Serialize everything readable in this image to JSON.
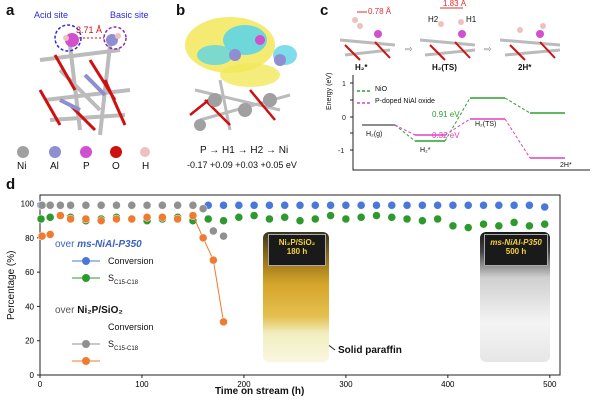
{
  "panel_a": {
    "label": "a",
    "acid_site": "Acid site",
    "basic_site": "Basic site",
    "distance": "3.71 Å",
    "legend": [
      {
        "name": "Ni",
        "color": "#a0a0a0"
      },
      {
        "name": "Al",
        "color": "#8e8ed0"
      },
      {
        "name": "P",
        "color": "#d050d0"
      },
      {
        "name": "O",
        "color": "#d01010"
      },
      {
        "name": "H",
        "color": "#f0c0c0"
      }
    ]
  },
  "panel_b": {
    "label": "b",
    "flow": "P → H1 → H2 → Ni",
    "charges": "-0.17  +0.09  +0.03  +0.05 eV"
  },
  "panel_c": {
    "label": "c",
    "dist1": "0.78 Å",
    "dist2": "1.83 Å",
    "h2_label": "H2",
    "h1_label": "H1",
    "state_labels": [
      "H₂*",
      "H₂(TS)",
      "2H*"
    ],
    "legend": [
      {
        "name": "NiO",
        "color": "#2ca02c"
      },
      {
        "name": "P-doped NiAl oxide",
        "color": "#e040c0"
      }
    ],
    "ylabel": "Energy (eV)",
    "barrier_green": "0.91 eV",
    "barrier_magenta": "0.32 eV",
    "level_labels": [
      "H₂(g)",
      "H₂*",
      "H₂(TS)",
      "2H*"
    ]
  },
  "panel_d": {
    "label": "d",
    "legend_group1_title_prefix": "over ",
    "legend_group1_catalyst": "ms-NiAl-P350",
    "legend_group2_title_prefix": "over ",
    "legend_group2_catalyst": "Ni₂P/SiO₂",
    "conversion_label": "Conversion",
    "selectivity_label": "S",
    "selectivity_sub": "C15-C18",
    "photo1_title": "Ni₂P/SiO₂",
    "photo1_time": "180 h",
    "photo2_title": "ms-NiAl-P350",
    "photo2_time": "500 h",
    "paraffin_label": "Solid paraffin"
  },
  "chart_data": {
    "type": "scatter",
    "xlabel": "Time on stream (h)",
    "ylabel": "Percentage (%)",
    "xlim": [
      0,
      510
    ],
    "ylim": [
      0,
      105
    ],
    "xticks": [
      0,
      100,
      200,
      300,
      400,
      500
    ],
    "yticks": [
      0,
      20,
      40,
      60,
      80,
      100
    ],
    "series": [
      {
        "name": "Conversion",
        "color": "#4a78d8",
        "x": [
          1,
          10,
          20,
          30,
          45,
          60,
          75,
          90,
          105,
          120,
          135,
          150,
          165,
          180,
          195,
          210,
          225,
          240,
          255,
          270,
          285,
          300,
          315,
          330,
          345,
          360,
          375,
          390,
          405,
          420,
          435,
          450,
          465,
          480,
          495
        ],
        "y": [
          99,
          99,
          99,
          99,
          99,
          99,
          99,
          99,
          99,
          99,
          99,
          99,
          99,
          99,
          99,
          99,
          99,
          99,
          99,
          99,
          99,
          99,
          99,
          99,
          99,
          99,
          99,
          99,
          99,
          99,
          99,
          99,
          99,
          99,
          98
        ]
      },
      {
        "name": "S",
        "color": "#2e9a2e",
        "x": [
          1,
          10,
          20,
          30,
          45,
          60,
          75,
          90,
          105,
          120,
          135,
          150,
          165,
          180,
          195,
          210,
          225,
          240,
          255,
          270,
          285,
          300,
          315,
          330,
          345,
          360,
          375,
          390,
          405,
          420,
          435,
          450,
          465,
          480,
          495
        ],
        "y": [
          91,
          92,
          93,
          92,
          90,
          91,
          92,
          91,
          90,
          91,
          92,
          90,
          91,
          90,
          92,
          93,
          91,
          92,
          90,
          91,
          93,
          91,
          92,
          93,
          92,
          91,
          90,
          91,
          87,
          86,
          88,
          87,
          89,
          87,
          88
        ]
      },
      {
        "name": "Conversion",
        "color": "#909090",
        "x": [
          2,
          10,
          20,
          30,
          45,
          60,
          75,
          90,
          105,
          120,
          135,
          150,
          160,
          170,
          180
        ],
        "y": [
          99,
          99,
          99,
          99,
          99,
          99,
          99,
          99,
          99,
          99,
          99,
          99,
          97,
          84,
          81
        ]
      },
      {
        "name": "S",
        "color": "#f07a30",
        "x": [
          2,
          10,
          20,
          30,
          45,
          60,
          75,
          90,
          105,
          120,
          135,
          150,
          160,
          170,
          180
        ],
        "y": [
          81,
          82,
          93,
          91,
          91,
          90,
          91,
          91,
          92,
          92,
          91,
          93,
          80,
          67,
          31
        ]
      }
    ]
  }
}
